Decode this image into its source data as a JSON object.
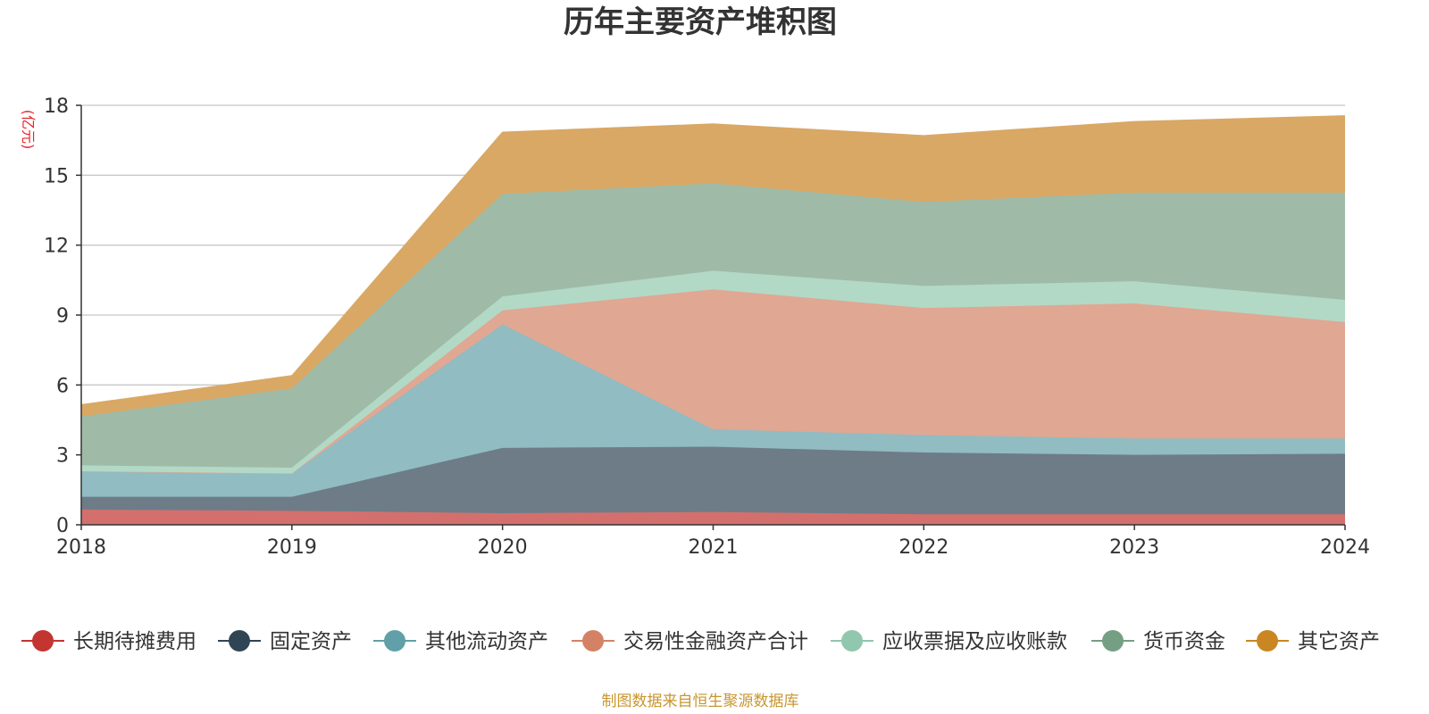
{
  "chart_data": {
    "type": "area",
    "stacked": true,
    "title": "历年主要资产堆积图",
    "unit_label": "(亿元)",
    "source": "制图数据来自恒生聚源数据库",
    "x": [
      "2018",
      "2019",
      "2020",
      "2021",
      "2022",
      "2023",
      "2024"
    ],
    "ylim": [
      0,
      18
    ],
    "yticks": [
      0,
      3,
      6,
      9,
      12,
      15,
      18
    ],
    "grid": true,
    "legend_position": "bottom",
    "series": [
      {
        "name": "长期待摊费用",
        "color": "#c23531",
        "fill": "#d3706e",
        "values": [
          0.65,
          0.6,
          0.5,
          0.55,
          0.45,
          0.45,
          0.45
        ]
      },
      {
        "name": "固定资产",
        "color": "#2f4554",
        "fill": "#6e7c88",
        "values": [
          0.55,
          0.6,
          2.8,
          2.8,
          2.65,
          2.55,
          2.6
        ]
      },
      {
        "name": "其他流动资产",
        "color": "#61a0a8",
        "fill": "#90bcc2",
        "values": [
          1.1,
          1.0,
          5.3,
          0.75,
          0.75,
          0.7,
          0.65
        ]
      },
      {
        "name": "交易性金融资产合计",
        "color": "#d48265",
        "fill": "#e0a793",
        "values": [
          0,
          0,
          0.6,
          6.0,
          5.45,
          5.8,
          5.0
        ]
      },
      {
        "name": "应收票据及应收账款",
        "color": "#91c7ae",
        "fill": "#b2d9c6",
        "values": [
          0.25,
          0.25,
          0.6,
          0.8,
          0.95,
          0.95,
          0.95
        ]
      },
      {
        "name": "货币资金",
        "color": "#749f83",
        "fill": "#9fbba8",
        "values": [
          2.1,
          3.4,
          4.4,
          3.75,
          3.6,
          3.8,
          4.6
        ]
      },
      {
        "name": "其它资产",
        "color": "#ca8622",
        "fill": "#d9a865",
        "values": [
          0.5,
          0.55,
          2.65,
          2.55,
          2.85,
          3.05,
          3.3
        ]
      }
    ]
  }
}
